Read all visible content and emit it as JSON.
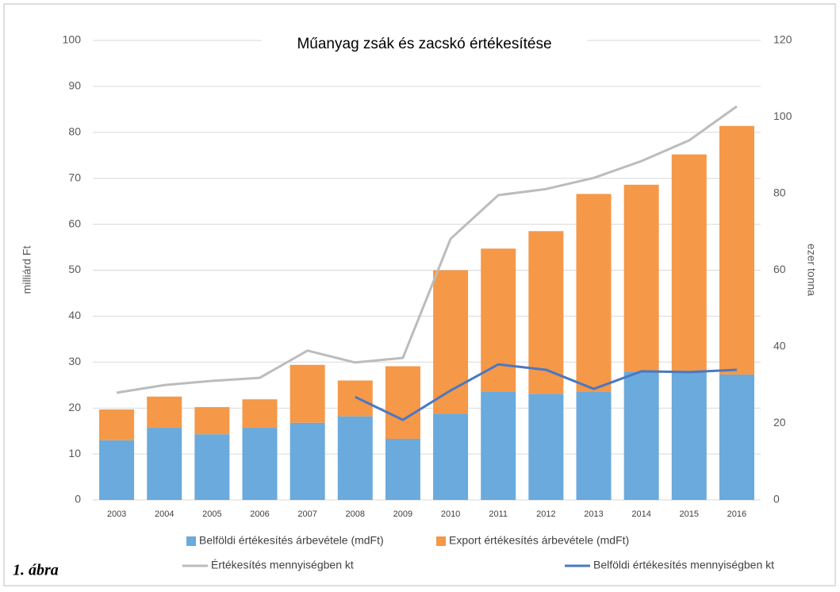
{
  "chart_data": {
    "type": "bar",
    "title": "Műanyag zsák és zacskó értékesítése",
    "ylabel": "milliárd Ft",
    "y2label": "ezer tonna",
    "categories": [
      "2003",
      "2004",
      "2005",
      "2006",
      "2007",
      "2008",
      "2009",
      "2010",
      "2011",
      "2012",
      "2013",
      "2014",
      "2015",
      "2016"
    ],
    "stacked": true,
    "grid": true,
    "ylim": [
      0,
      100
    ],
    "yticks": [
      0,
      10,
      20,
      30,
      40,
      50,
      60,
      70,
      80,
      90,
      100
    ],
    "y2lim": [
      0,
      120
    ],
    "y2ticks": [
      0,
      20,
      40,
      60,
      80,
      100,
      120
    ],
    "series": [
      {
        "name": "Belföldi értékesítés árbevétele (mdFt)",
        "type": "bar",
        "color": "#6aaadc",
        "values": [
          13.0,
          15.7,
          14.3,
          15.7,
          16.8,
          18.2,
          13.3,
          18.8,
          23.6,
          23.1,
          23.6,
          27.9,
          27.8,
          27.3
        ]
      },
      {
        "name": "Export értékesítés árbevétele (mdFt)",
        "type": "bar",
        "color": "#f59848",
        "values": [
          6.7,
          6.8,
          5.9,
          6.2,
          12.6,
          7.8,
          15.8,
          31.2,
          31.1,
          35.4,
          43.0,
          40.7,
          47.4,
          54.1
        ]
      },
      {
        "name": "Értékesítés mennyiségben kt",
        "type": "line",
        "axis": "y2",
        "color": "#bcbcbc",
        "values": [
          28.0,
          30.0,
          31.1,
          31.9,
          39.0,
          35.9,
          37.1,
          68.2,
          79.6,
          81.2,
          84.1,
          88.5,
          93.9,
          102.8
        ]
      },
      {
        "name": "Belföldi értékesítés mennyiségben kt",
        "type": "line",
        "axis": "y2",
        "color": "#4a78c2",
        "values": [
          null,
          null,
          null,
          null,
          null,
          26.9,
          20.9,
          28.6,
          35.4,
          34.0,
          29.0,
          33.6,
          33.4,
          34.0
        ]
      }
    ]
  },
  "caption": "1. ábra"
}
